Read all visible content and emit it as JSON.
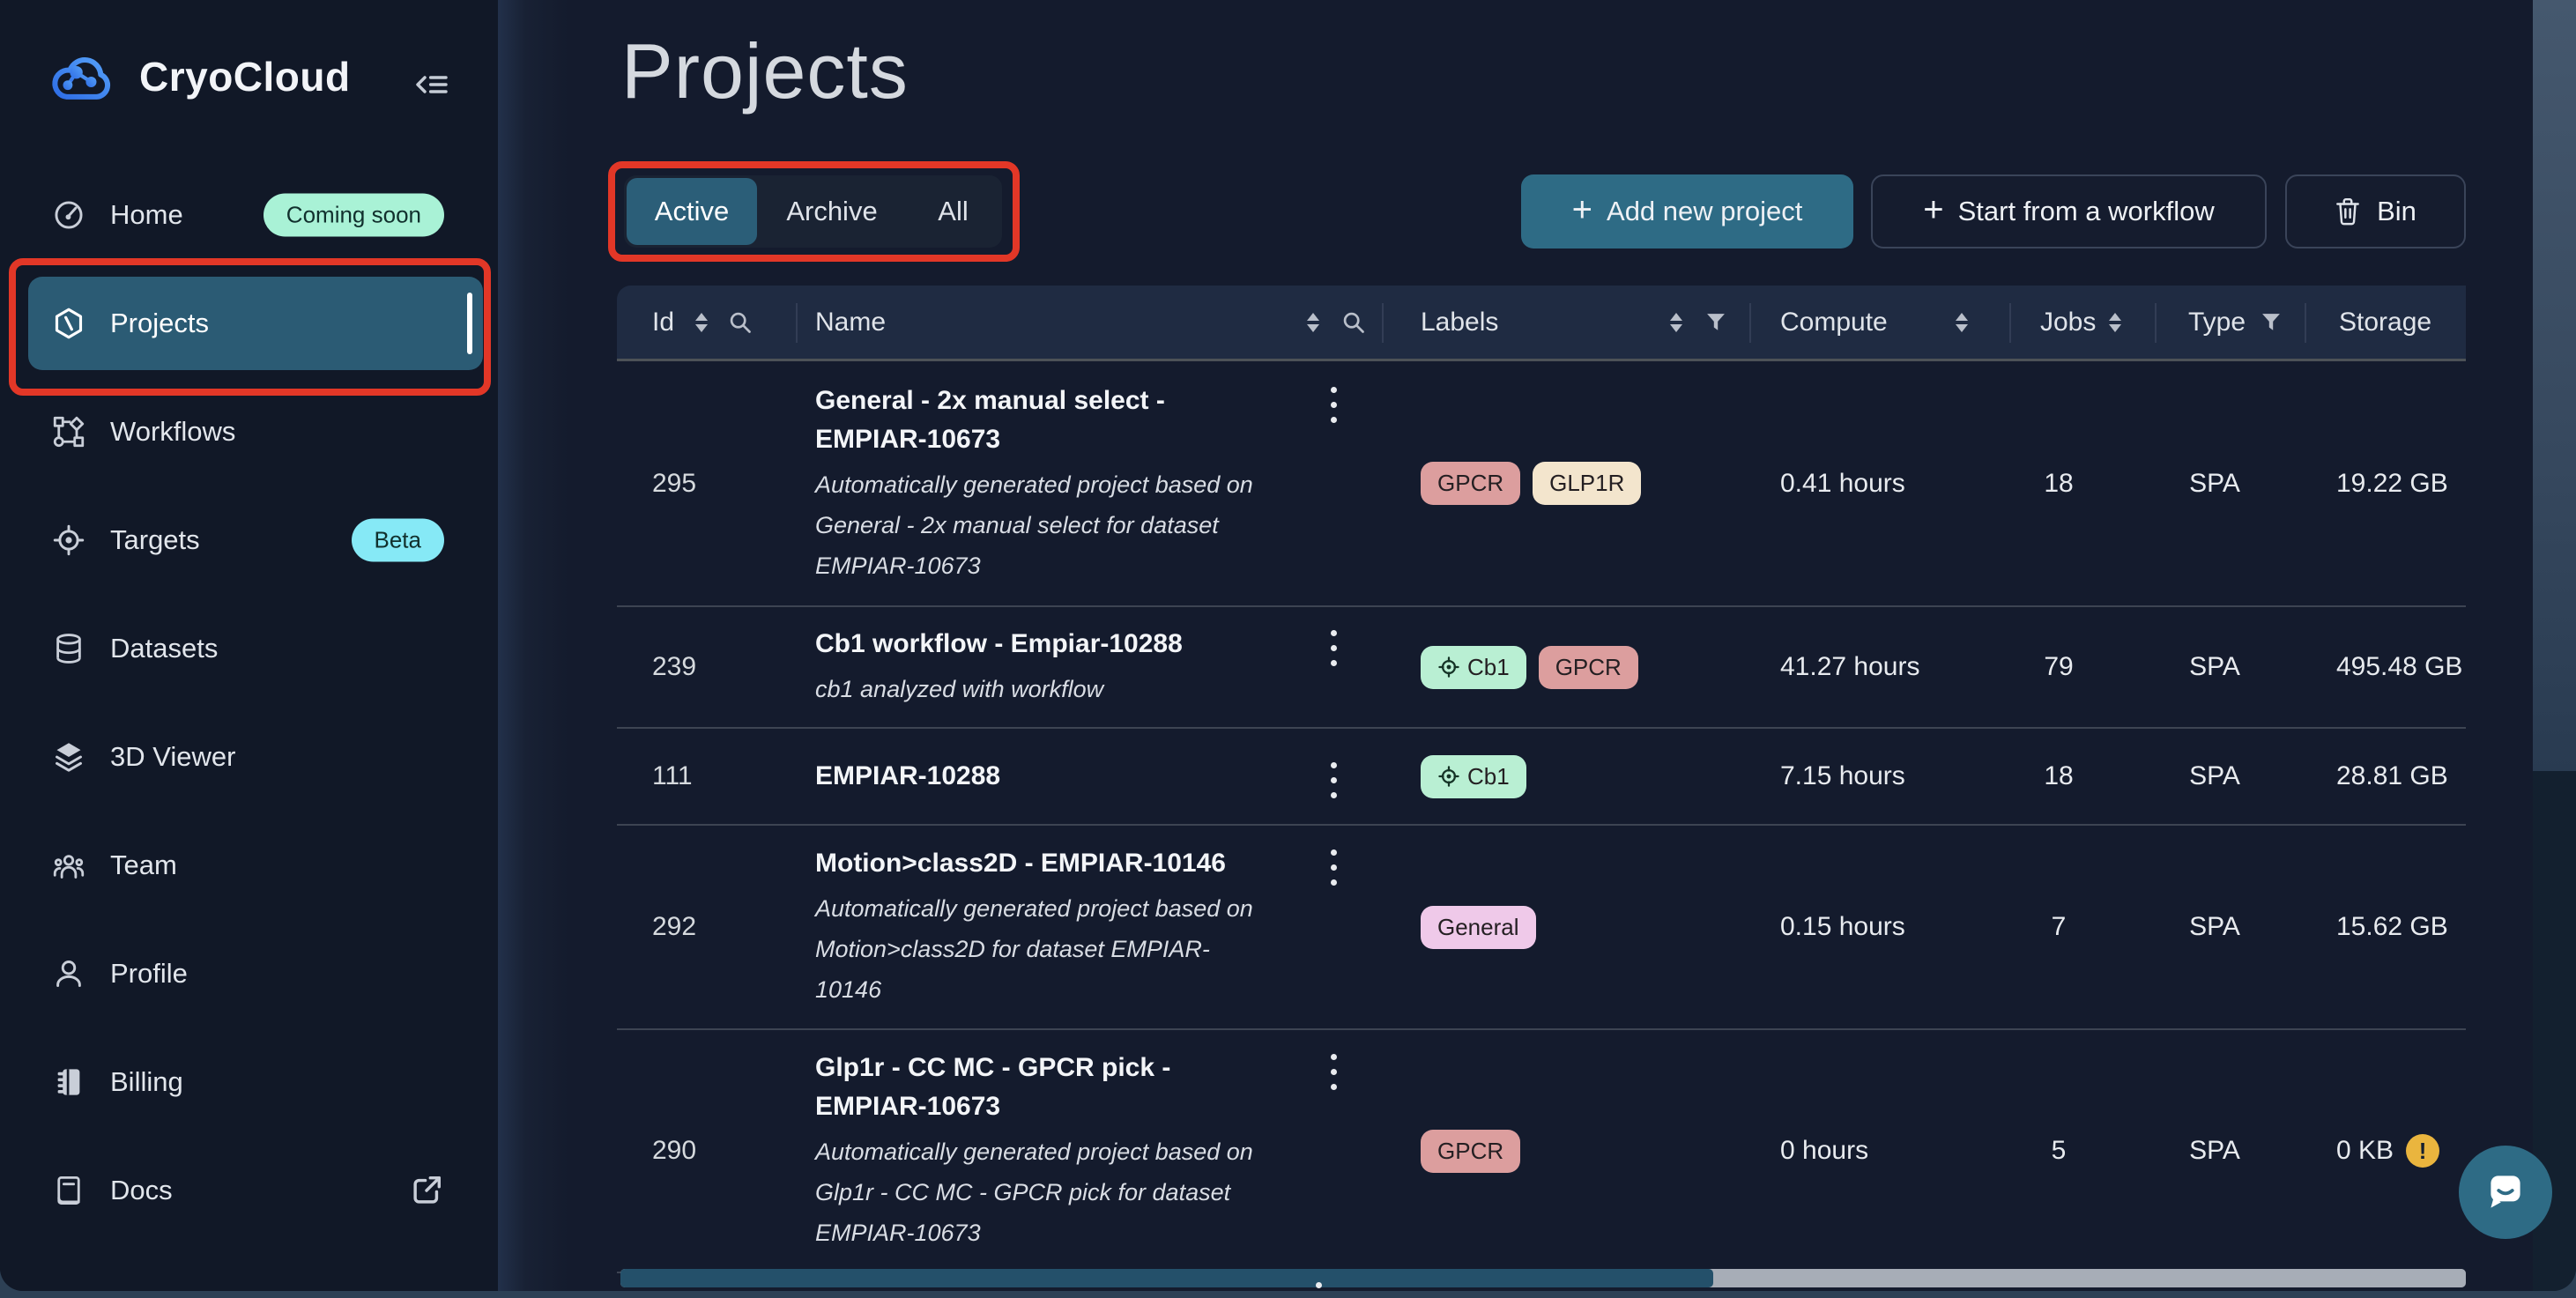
{
  "app": {
    "brand": "CryoCloud"
  },
  "sidebar": {
    "items": [
      {
        "label": "Home",
        "badge": "Coming soon"
      },
      {
        "label": "Projects",
        "active": true
      },
      {
        "label": "Workflows"
      },
      {
        "label": "Targets",
        "badge": "Beta"
      },
      {
        "label": "Datasets"
      },
      {
        "label": "3D Viewer"
      },
      {
        "label": "Team"
      },
      {
        "label": "Profile"
      },
      {
        "label": "Billing"
      },
      {
        "label": "Docs",
        "external": true
      }
    ]
  },
  "page": {
    "title": "Projects"
  },
  "tabs": {
    "options": [
      "Active",
      "Archive",
      "All"
    ],
    "active": "Active"
  },
  "actions": {
    "add_new_project": "Add new project",
    "start_from_workflow": "Start from a workflow",
    "bin": "Bin"
  },
  "table": {
    "columns": [
      {
        "label": "Id",
        "icons": [
          "sort",
          "search"
        ]
      },
      {
        "label": "Name",
        "icons": [
          "sort",
          "search"
        ]
      },
      {
        "label": "Labels",
        "icons": [
          "sort",
          "filter"
        ]
      },
      {
        "label": "Compute",
        "icons": [
          "sort"
        ]
      },
      {
        "label": "Jobs",
        "icons": [
          "sort"
        ]
      },
      {
        "label": "Type",
        "icons": [
          "filter"
        ]
      },
      {
        "label": "Storage",
        "icons": []
      }
    ],
    "rows": [
      {
        "id": "295",
        "name": "General - 2x manual select - EMPIAR-10673",
        "desc": "Automatically generated project based on General - 2x manual select for dataset EMPIAR-10673",
        "labels": [
          {
            "text": "GPCR",
            "bg": "#dc9e9e"
          },
          {
            "text": "GLP1R",
            "bg": "#f3e5cd"
          }
        ],
        "compute": "0.41 hours",
        "jobs": "18",
        "type": "SPA",
        "storage": "19.22 GB",
        "storage_warning": false
      },
      {
        "id": "239",
        "name": "Cb1 workflow - Empiar-10288",
        "desc": "cb1 analyzed with workflow",
        "labels": [
          {
            "text": "Cb1",
            "bg": "#b9efd3",
            "icon": "target"
          },
          {
            "text": "GPCR",
            "bg": "#dc9e9e"
          }
        ],
        "compute": "41.27 hours",
        "jobs": "79",
        "type": "SPA",
        "storage": "495.48 GB",
        "storage_warning": false
      },
      {
        "id": "111",
        "name": "EMPIAR-10288",
        "desc": "",
        "labels": [
          {
            "text": "Cb1",
            "bg": "#b9efd3",
            "icon": "target"
          }
        ],
        "compute": "7.15 hours",
        "jobs": "18",
        "type": "SPA",
        "storage": "28.81 GB",
        "storage_warning": false
      },
      {
        "id": "292",
        "name": "Motion>class2D - EMPIAR-10146",
        "desc": "Automatically generated project based on Motion>class2D for dataset EMPIAR-10146",
        "labels": [
          {
            "text": "General",
            "bg": "#efc9e9"
          }
        ],
        "compute": "0.15 hours",
        "jobs": "7",
        "type": "SPA",
        "storage": "15.62 GB",
        "storage_warning": false
      },
      {
        "id": "290",
        "name": "Glp1r - CC MC - GPCR pick - EMPIAR-10673",
        "desc": "Automatically generated project based on Glp1r - CC MC - GPCR pick for dataset EMPIAR-10673",
        "labels": [
          {
            "text": "GPCR",
            "bg": "#dc9e9e"
          }
        ],
        "compute": "0 hours",
        "jobs": "5",
        "type": "SPA",
        "storage": "0 KB",
        "storage_warning": true
      }
    ]
  },
  "colors": {
    "accent_teal": "#2e6b85",
    "sidebar_active": "#2b5b74",
    "annotation_red": "#e23727",
    "badge_coming_soon": "#a9f2d6",
    "badge_beta": "#86e9f6",
    "label_gpcr": "#dc9e9e",
    "label_glp1r": "#f3e5cd",
    "label_cb1": "#b9efd3",
    "label_general": "#efc9e9",
    "warning_yellow": "#eab53e"
  }
}
